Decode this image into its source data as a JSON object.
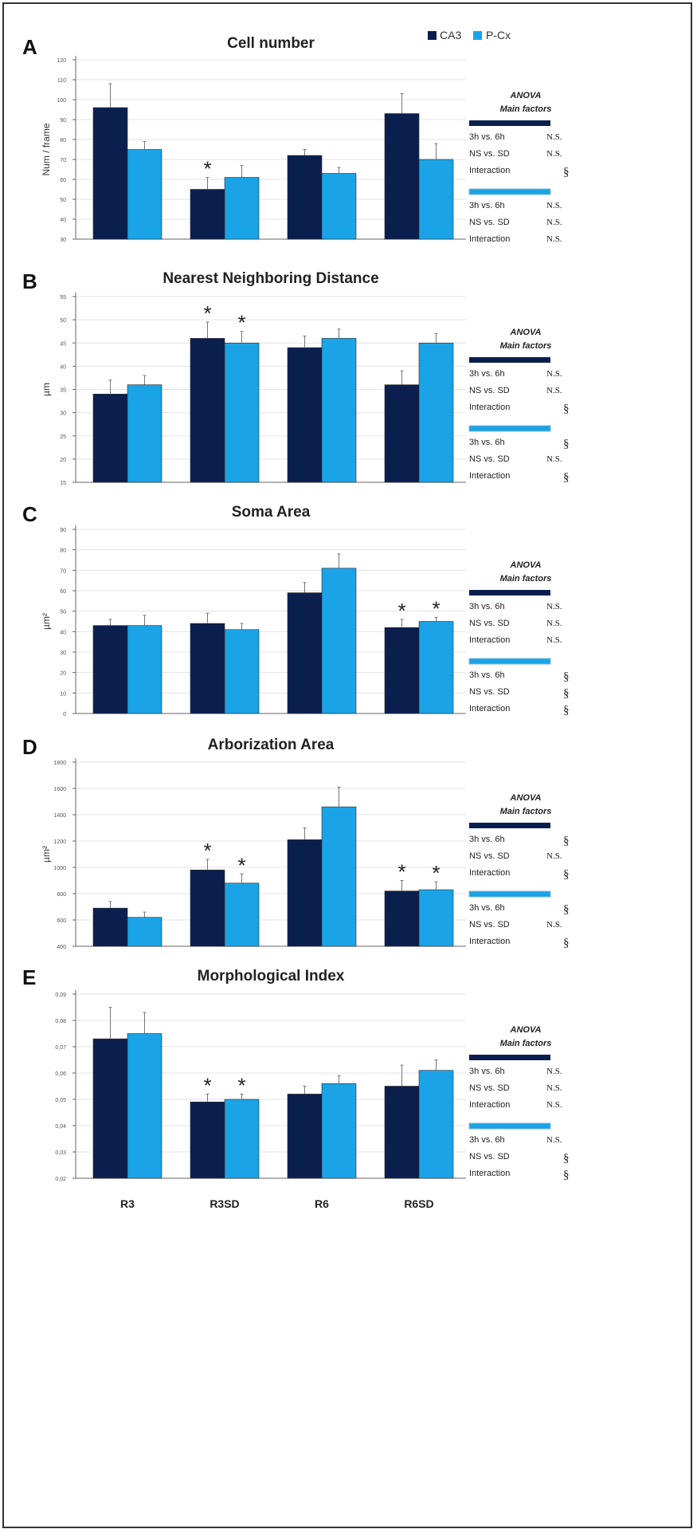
{
  "legend": {
    "items": [
      {
        "label": "CA3",
        "color": "#0b1f4f"
      },
      {
        "label": "P-Cx",
        "color": "#1aa3e6"
      }
    ]
  },
  "chart_data": [
    {
      "letter": "A",
      "type": "bar",
      "title": "Cell number",
      "ylabel": "Num / frame",
      "ylim": [
        30,
        120
      ],
      "yticks": [
        "30",
        "40",
        "50",
        "60",
        "70",
        "80",
        "90",
        "100",
        "110",
        "120"
      ],
      "categories": [
        "R3",
        "R3SD",
        "R6",
        "R6SD"
      ],
      "series": [
        {
          "name": "CA3",
          "values": [
            96,
            55,
            72,
            93
          ],
          "errors": [
            12,
            6,
            3,
            10
          ]
        },
        {
          "name": "P-Cx",
          "values": [
            75,
            61,
            63,
            70
          ],
          "errors": [
            4,
            6,
            3,
            8
          ]
        }
      ],
      "asterisks": [
        [
          false,
          true,
          false,
          false
        ],
        [
          false,
          false,
          false,
          false
        ]
      ],
      "anova": {
        "title": "ANOVA",
        "subtitle": "Main factors",
        "groups": [
          {
            "rows": [
              {
                "label": "3h vs. 6h",
                "result": "N.S."
              },
              {
                "label": "NS vs. SD",
                "result": "N.S."
              },
              {
                "label": "Interaction",
                "result": "§"
              }
            ]
          },
          {
            "rows": [
              {
                "label": "3h vs. 6h",
                "result": "N.S."
              },
              {
                "label": "NS vs. SD",
                "result": "N.S."
              },
              {
                "label": "Interaction",
                "result": "N.S."
              }
            ]
          }
        ]
      }
    },
    {
      "letter": "B",
      "type": "bar",
      "title": "Nearest Neighboring Distance",
      "ylabel": "µm",
      "ylim": [
        15,
        55
      ],
      "yticks": [
        "15",
        "20",
        "25",
        "30",
        "35",
        "40",
        "45",
        "50",
        "55"
      ],
      "categories": [
        "R3",
        "R3SD",
        "R6",
        "R6SD"
      ],
      "series": [
        {
          "name": "CA3",
          "values": [
            34,
            46,
            44,
            36
          ],
          "errors": [
            3,
            3.5,
            2.5,
            3
          ]
        },
        {
          "name": "P-Cx",
          "values": [
            36,
            45,
            46,
            45
          ],
          "errors": [
            2,
            2.5,
            2,
            2
          ]
        }
      ],
      "asterisks": [
        [
          false,
          true,
          false,
          false
        ],
        [
          false,
          true,
          false,
          false
        ]
      ],
      "anova": {
        "title": "ANOVA",
        "subtitle": "Main factors",
        "groups": [
          {
            "rows": [
              {
                "label": "3h vs. 6h",
                "result": "N.S."
              },
              {
                "label": "NS vs. SD",
                "result": "N.S."
              },
              {
                "label": "Interaction",
                "result": "§"
              }
            ]
          },
          {
            "rows": [
              {
                "label": "3h vs. 6h",
                "result": "§"
              },
              {
                "label": "NS vs. SD",
                "result": "N.S."
              },
              {
                "label": "Interaction",
                "result": "§"
              }
            ]
          }
        ]
      }
    },
    {
      "letter": "C",
      "type": "bar",
      "title": "Soma Area",
      "ylabel": "µm²",
      "ylim": [
        0,
        90
      ],
      "yticks": [
        "0",
        "10",
        "20",
        "30",
        "40",
        "50",
        "60",
        "70",
        "80",
        "90"
      ],
      "categories": [
        "R3",
        "R3SD",
        "R6",
        "R6SD"
      ],
      "series": [
        {
          "name": "CA3",
          "values": [
            43,
            44,
            59,
            42
          ],
          "errors": [
            3,
            5,
            5,
            4
          ]
        },
        {
          "name": "P-Cx",
          "values": [
            43,
            41,
            71,
            45
          ],
          "errors": [
            5,
            3,
            7,
            2
          ]
        }
      ],
      "asterisks": [
        [
          false,
          false,
          false,
          true
        ],
        [
          false,
          false,
          false,
          true
        ]
      ],
      "anova": {
        "title": "ANOVA",
        "subtitle": "Main factors",
        "groups": [
          {
            "rows": [
              {
                "label": "3h vs. 6h",
                "result": "N.S."
              },
              {
                "label": "NS vs. SD",
                "result": "N.S."
              },
              {
                "label": "Interaction",
                "result": "N.S."
              }
            ]
          },
          {
            "rows": [
              {
                "label": "3h vs. 6h",
                "result": "§"
              },
              {
                "label": "NS vs. SD",
                "result": "§"
              },
              {
                "label": "Interaction",
                "result": "§"
              }
            ]
          }
        ]
      }
    },
    {
      "letter": "D",
      "type": "bar",
      "title": "Arborization Area",
      "ylabel": "µm²",
      "ylim": [
        400,
        1800
      ],
      "yticks": [
        "400",
        "600",
        "800",
        "1000",
        "1200",
        "1400",
        "1600",
        "1800"
      ],
      "categories": [
        "R3",
        "R3SD",
        "R6",
        "R6SD"
      ],
      "series": [
        {
          "name": "CA3",
          "values": [
            690,
            980,
            1210,
            820
          ],
          "errors": [
            50,
            80,
            90,
            80
          ]
        },
        {
          "name": "P-Cx",
          "values": [
            620,
            880,
            1460,
            830
          ],
          "errors": [
            40,
            70,
            150,
            60
          ]
        }
      ],
      "asterisks": [
        [
          false,
          true,
          false,
          true
        ],
        [
          false,
          true,
          false,
          true
        ]
      ],
      "anova": {
        "title": "ANOVA",
        "subtitle": "Main factors",
        "groups": [
          {
            "rows": [
              {
                "label": "3h vs. 6h",
                "result": "§"
              },
              {
                "label": "NS vs. SD",
                "result": "N.S."
              },
              {
                "label": "Interaction",
                "result": "§"
              }
            ]
          },
          {
            "rows": [
              {
                "label": "3h vs. 6h",
                "result": "§"
              },
              {
                "label": "NS vs. SD",
                "result": "N.S."
              },
              {
                "label": "Interaction",
                "result": "§"
              }
            ]
          }
        ]
      }
    },
    {
      "letter": "E",
      "type": "bar",
      "title": "Morphological Index",
      "ylabel": "",
      "ylim": [
        0.02,
        0.09
      ],
      "yticks": [
        "0,02",
        "0,03",
        "0,04",
        "0,05",
        "0,06",
        "0,07",
        "0,08",
        "0,09"
      ],
      "categories": [
        "R3",
        "R3SD",
        "R6",
        "R6SD"
      ],
      "series": [
        {
          "name": "CA3",
          "values": [
            0.073,
            0.049,
            0.052,
            0.055
          ],
          "errors": [
            0.012,
            0.003,
            0.003,
            0.008
          ]
        },
        {
          "name": "P-Cx",
          "values": [
            0.075,
            0.05,
            0.056,
            0.061
          ],
          "errors": [
            0.008,
            0.002,
            0.003,
            0.004
          ]
        }
      ],
      "asterisks": [
        [
          false,
          true,
          false,
          false
        ],
        [
          false,
          true,
          false,
          false
        ]
      ],
      "anova": {
        "title": "ANOVA",
        "subtitle": "Main factors",
        "groups": [
          {
            "rows": [
              {
                "label": "3h vs. 6h",
                "result": "N.S."
              },
              {
                "label": "NS vs. SD",
                "result": "N.S."
              },
              {
                "label": "Interaction",
                "result": "N.S."
              }
            ]
          },
          {
            "rows": [
              {
                "label": "3h vs. 6h",
                "result": "N.S."
              },
              {
                "label": "NS vs. SD",
                "result": "§"
              },
              {
                "label": "Interaction",
                "result": "§"
              }
            ]
          }
        ]
      }
    }
  ]
}
